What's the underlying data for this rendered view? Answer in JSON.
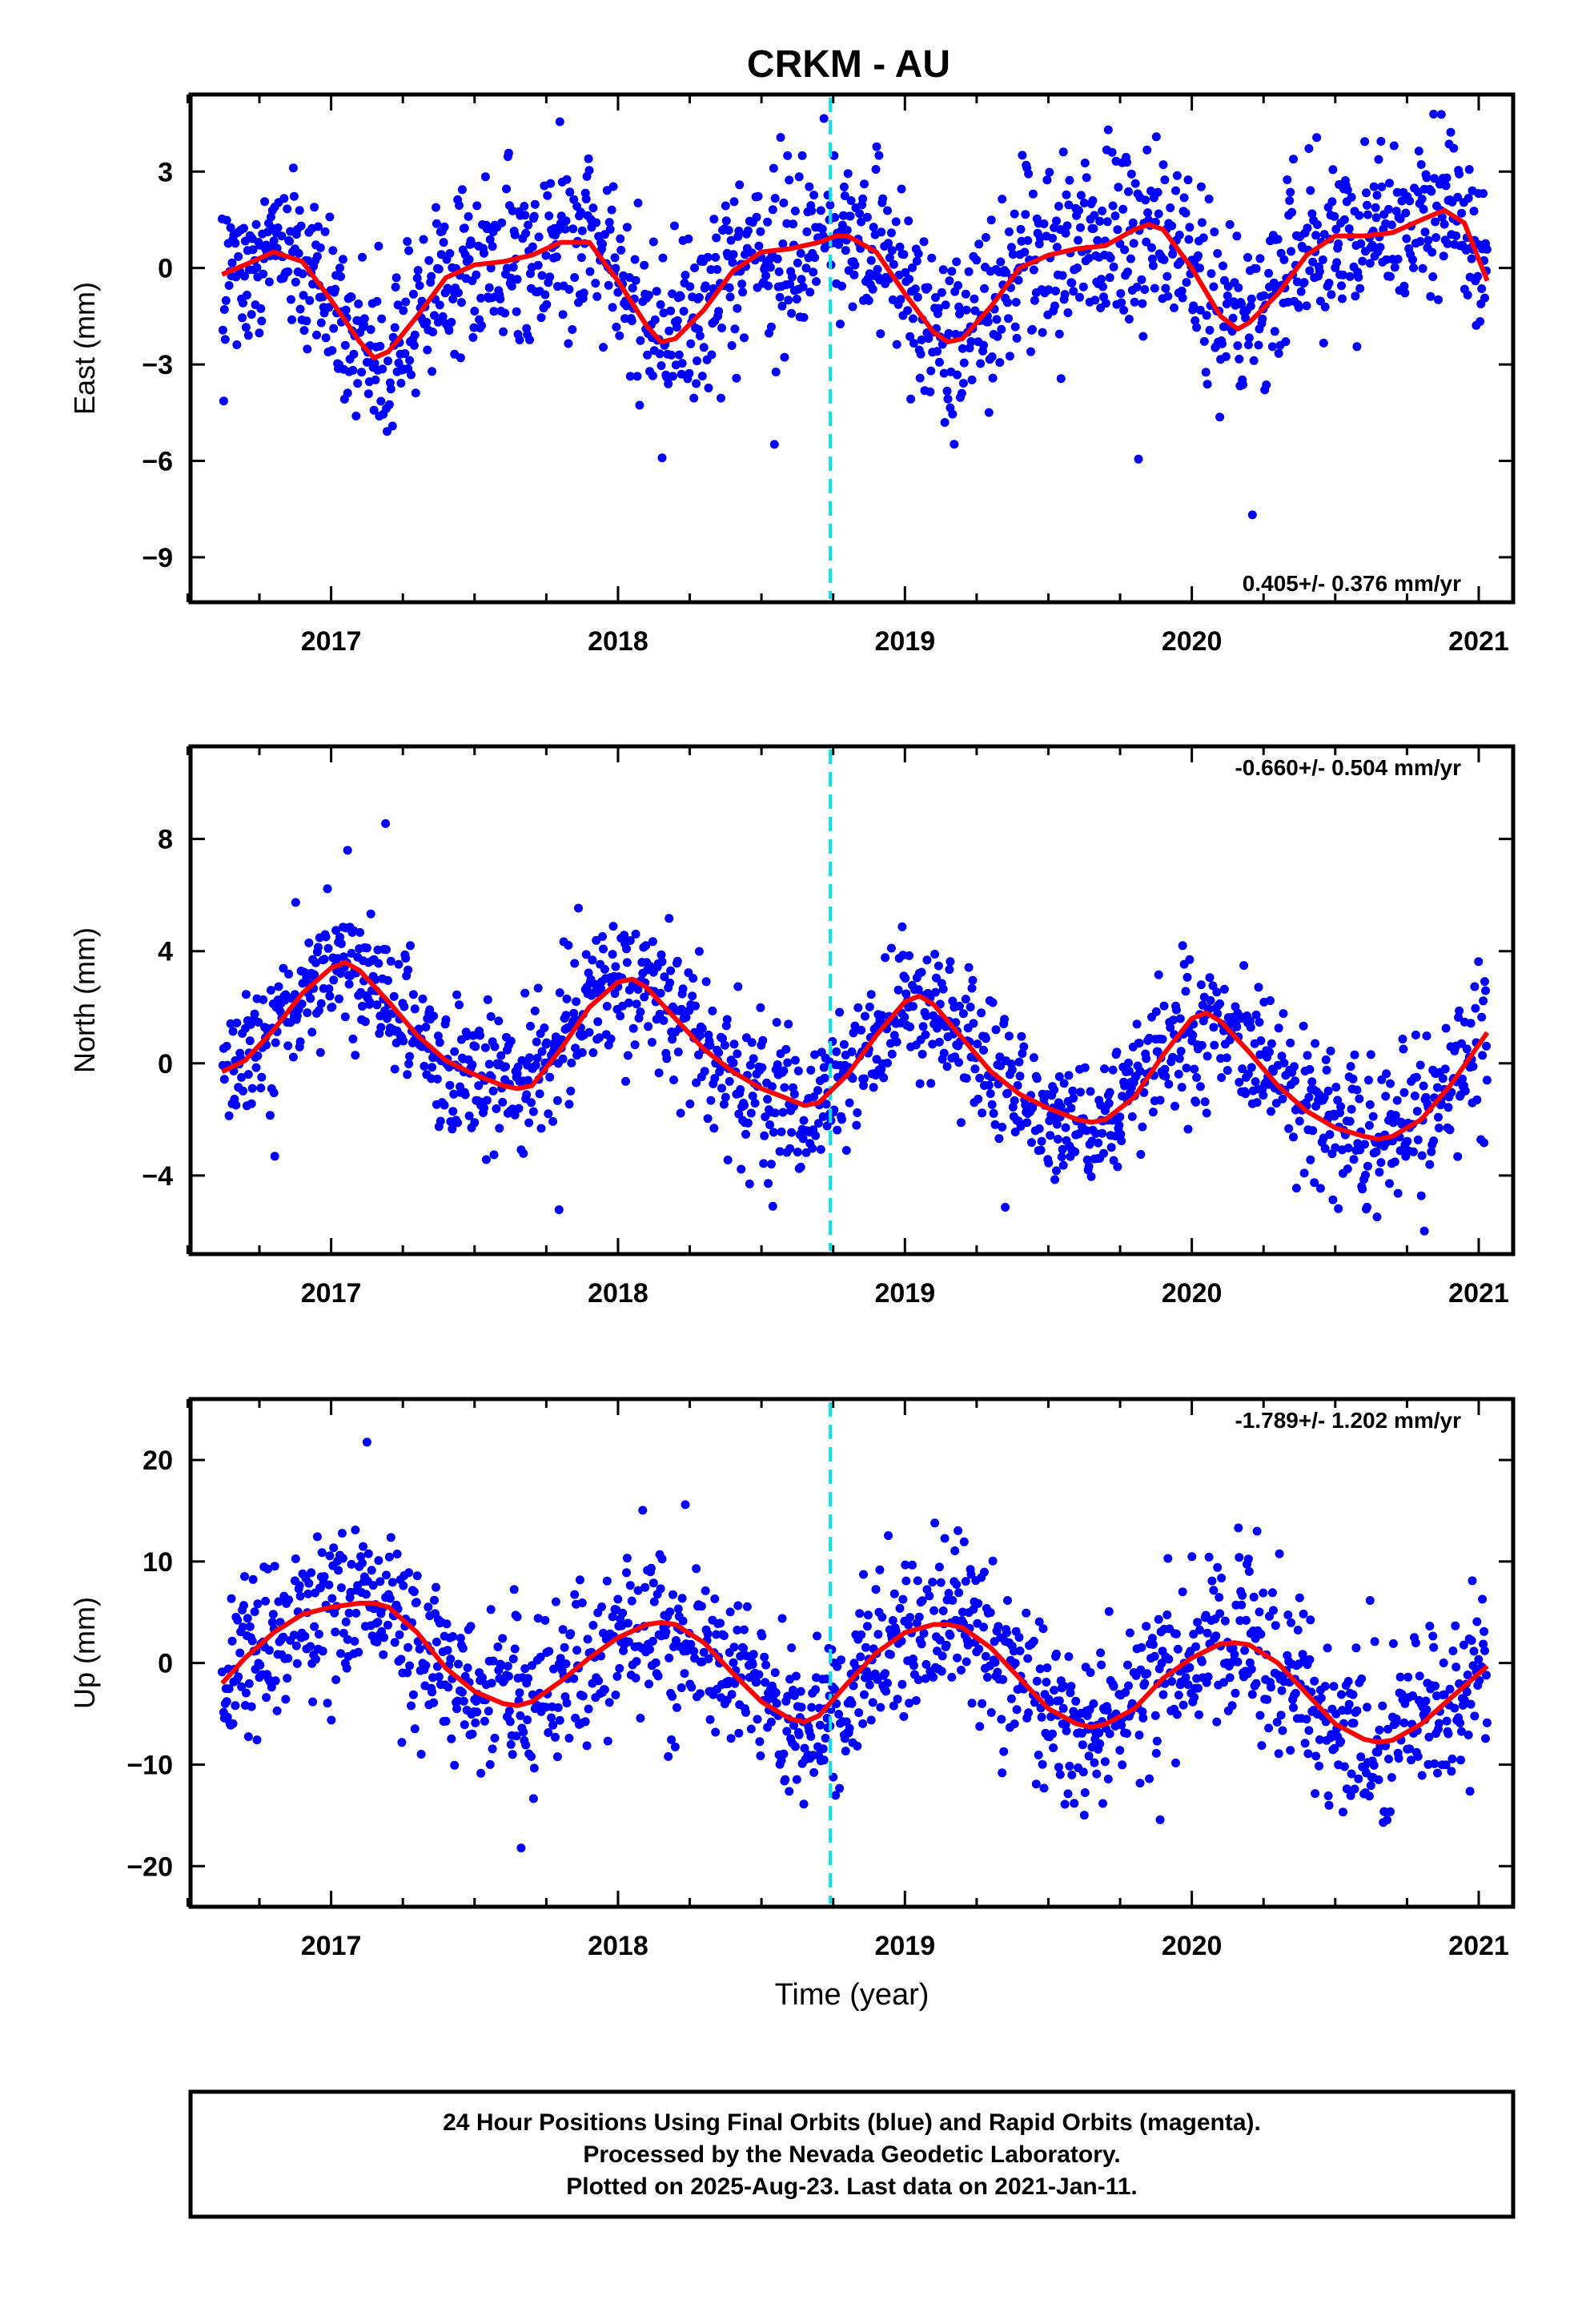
{
  "title": "CRKM - AU",
  "footer": {
    "lines": [
      "24 Hour Positions Using Final Orbits (blue) and Rapid Orbits (magenta).",
      "Processed by the Nevada Geodetic Laboratory.",
      "Plotted on 2025-Aug-23. Last data on 2021-Jan-11."
    ]
  },
  "colors": {
    "points": "#0000ff",
    "fit": "#ff0000",
    "event_line": "#00e5ee",
    "frame": "#000000"
  },
  "chart_data": [
    {
      "type": "scatter",
      "name": "east",
      "ylabel": "East (mm)",
      "xlabel": "",
      "xlim": [
        2016.51,
        2021.12
      ],
      "ylim": [
        -10.4,
        5.4
      ],
      "yticks": [
        3,
        0,
        -3,
        -6,
        -9
      ],
      "ytick_labels": [
        "3",
        "0",
        "−3",
        "−6",
        "−9"
      ],
      "xticks": [
        2017,
        2018,
        2019,
        2020,
        2021
      ],
      "xtick_labels": [
        "2017",
        "2018",
        "2019",
        "2020",
        "2021"
      ],
      "rate_label": "0.405+/- 0.376 mm/yr",
      "rate_position": "bottom-right",
      "event_line_x": 2018.74,
      "fit_curve": {
        "x": [
          2016.62,
          2016.7,
          2016.8,
          2016.9,
          2017.0,
          2017.1,
          2017.15,
          2017.2,
          2017.3,
          2017.4,
          2017.5,
          2017.6,
          2017.7,
          2017.8,
          2017.9,
          2018.0,
          2018.1,
          2018.15,
          2018.2,
          2018.3,
          2018.4,
          2018.5,
          2018.6,
          2018.7,
          2018.76,
          2018.8,
          2018.9,
          2019.0,
          2019.1,
          2019.15,
          2019.2,
          2019.3,
          2019.4,
          2019.5,
          2019.6,
          2019.7,
          2019.8,
          2019.85,
          2019.9,
          2020.0,
          2020.1,
          2020.16,
          2020.2,
          2020.3,
          2020.4,
          2020.5,
          2020.6,
          2020.7,
          2020.8,
          2020.88,
          2020.95,
          2021.03
        ],
        "y": [
          -0.2,
          0.1,
          0.5,
          0.2,
          -1.0,
          -2.3,
          -2.8,
          -2.6,
          -1.5,
          -0.3,
          0.1,
          0.2,
          0.4,
          0.8,
          0.8,
          -0.4,
          -1.8,
          -2.3,
          -2.2,
          -1.3,
          -0.1,
          0.5,
          0.6,
          0.8,
          1.0,
          1.0,
          0.5,
          -0.8,
          -2.0,
          -2.3,
          -2.2,
          -1.2,
          0.0,
          0.4,
          0.6,
          0.7,
          1.2,
          1.35,
          1.2,
          0.0,
          -1.5,
          -1.9,
          -1.7,
          -0.8,
          0.4,
          1.0,
          1.0,
          1.1,
          1.5,
          1.8,
          1.4,
          -0.4
        ]
      }
    },
    {
      "type": "scatter",
      "name": "north",
      "ylabel": "North (mm)",
      "xlabel": "",
      "xlim": [
        2016.51,
        2021.12
      ],
      "ylim": [
        -6.8,
        11.3
      ],
      "yticks": [
        8,
        4,
        0,
        -4
      ],
      "ytick_labels": [
        "8",
        "4",
        "0",
        "−4"
      ],
      "xticks": [
        2017,
        2018,
        2019,
        2020,
        2021
      ],
      "xtick_labels": [
        "2017",
        "2018",
        "2019",
        "2020",
        "2021"
      ],
      "rate_label": "-0.660+/- 0.504 mm/yr",
      "rate_position": "top-right",
      "event_line_x": 2018.74,
      "fit_curve": {
        "x": [
          2016.62,
          2016.7,
          2016.8,
          2016.9,
          2017.0,
          2017.05,
          2017.1,
          2017.2,
          2017.3,
          2017.4,
          2017.5,
          2017.6,
          2017.65,
          2017.7,
          2017.8,
          2017.9,
          2018.0,
          2018.05,
          2018.1,
          2018.2,
          2018.3,
          2018.4,
          2018.5,
          2018.6,
          2018.65,
          2018.7,
          2018.8,
          2018.9,
          2019.0,
          2019.05,
          2019.1,
          2019.2,
          2019.3,
          2019.4,
          2019.5,
          2019.6,
          2019.65,
          2019.7,
          2019.8,
          2019.9,
          2020.0,
          2020.05,
          2020.1,
          2020.2,
          2020.3,
          2020.4,
          2020.5,
          2020.6,
          2020.65,
          2020.7,
          2020.8,
          2020.9,
          2021.03
        ],
        "y": [
          -0.3,
          0.1,
          1.2,
          2.5,
          3.4,
          3.6,
          3.3,
          2.2,
          1.0,
          0.1,
          -0.4,
          -0.8,
          -0.9,
          -0.8,
          0.5,
          2.0,
          2.9,
          3.0,
          2.7,
          1.6,
          0.5,
          -0.3,
          -0.9,
          -1.3,
          -1.5,
          -1.4,
          -0.4,
          1.0,
          2.2,
          2.4,
          2.1,
          0.9,
          -0.3,
          -1.1,
          -1.6,
          -2.0,
          -2.1,
          -2.0,
          -1.2,
          0.3,
          1.6,
          1.8,
          1.5,
          0.4,
          -0.8,
          -1.7,
          -2.3,
          -2.6,
          -2.7,
          -2.6,
          -2.0,
          -0.8,
          1.1
        ]
      }
    },
    {
      "type": "scatter",
      "name": "up",
      "ylabel": "Up (mm)",
      "xlabel": "Time (year)",
      "xlim": [
        2016.51,
        2021.12
      ],
      "ylim": [
        -24,
        26
      ],
      "yticks": [
        20,
        10,
        0,
        -10,
        -20
      ],
      "ytick_labels": [
        "20",
        "10",
        "0",
        "−10",
        "−20"
      ],
      "xticks": [
        2017,
        2018,
        2019,
        2020,
        2021
      ],
      "xtick_labels": [
        "2017",
        "2018",
        "2019",
        "2020",
        "2021"
      ],
      "rate_label": "-1.789+/- 1.202 mm/yr",
      "rate_position": "top-right",
      "event_line_x": 2018.74,
      "fit_curve": {
        "x": [
          2016.62,
          2016.7,
          2016.8,
          2016.9,
          2017.0,
          2017.1,
          2017.15,
          2017.2,
          2017.3,
          2017.4,
          2017.5,
          2017.6,
          2017.65,
          2017.7,
          2017.8,
          2017.9,
          2018.0,
          2018.1,
          2018.15,
          2018.2,
          2018.3,
          2018.4,
          2018.5,
          2018.6,
          2018.65,
          2018.7,
          2018.8,
          2018.9,
          2019.0,
          2019.1,
          2019.15,
          2019.2,
          2019.3,
          2019.4,
          2019.5,
          2019.6,
          2019.65,
          2019.7,
          2019.8,
          2019.9,
          2020.0,
          2020.1,
          2020.15,
          2020.2,
          2020.3,
          2020.4,
          2020.5,
          2020.6,
          2020.65,
          2020.7,
          2020.8,
          2020.9,
          2021.03
        ],
        "y": [
          -2.0,
          0.5,
          3.0,
          4.8,
          5.5,
          5.9,
          5.9,
          5.5,
          3.0,
          -0.5,
          -2.8,
          -4.0,
          -4.2,
          -3.8,
          -1.8,
          0.5,
          2.5,
          3.8,
          4.0,
          3.8,
          2.0,
          -1.0,
          -3.8,
          -5.5,
          -5.8,
          -5.2,
          -2.0,
          1.0,
          3.0,
          3.8,
          3.8,
          3.5,
          1.5,
          -1.5,
          -4.5,
          -6.0,
          -6.3,
          -6.0,
          -4.5,
          -1.5,
          0.5,
          1.9,
          2.0,
          1.8,
          0.0,
          -3.0,
          -6.0,
          -7.5,
          -7.8,
          -7.6,
          -6.0,
          -3.5,
          -0.3
        ]
      }
    }
  ]
}
